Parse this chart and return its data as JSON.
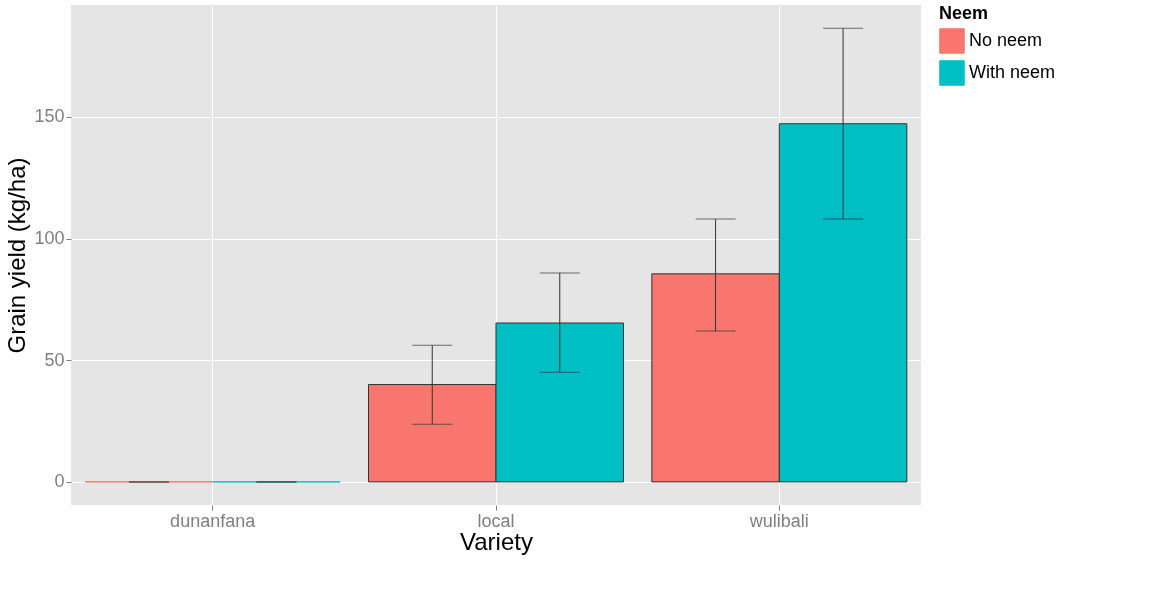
{
  "chart_data": {
    "type": "bar",
    "xlabel": "Variety",
    "ylabel": "Grain yield (kg/ha)",
    "legend_title": "Neem",
    "categories": [
      "dunanfana",
      "local",
      "wulibali"
    ],
    "series": [
      {
        "name": "No neem",
        "color": "#f8766d",
        "values": [
          0,
          40,
          85.5
        ],
        "errors": [
          0,
          [
            23.7,
            56.2
          ],
          [
            62,
            108
          ]
        ]
      },
      {
        "name": "With neem",
        "color": "#00bfc4",
        "values": [
          0,
          65.3,
          147.2
        ],
        "errors": [
          0,
          [
            45.1,
            85.9
          ],
          [
            108,
            186.4
          ]
        ]
      }
    ],
    "ylim": [
      -9.5,
      196
    ],
    "yticks": [
      0,
      50,
      100,
      150
    ],
    "grid": true,
    "legend": "right"
  }
}
